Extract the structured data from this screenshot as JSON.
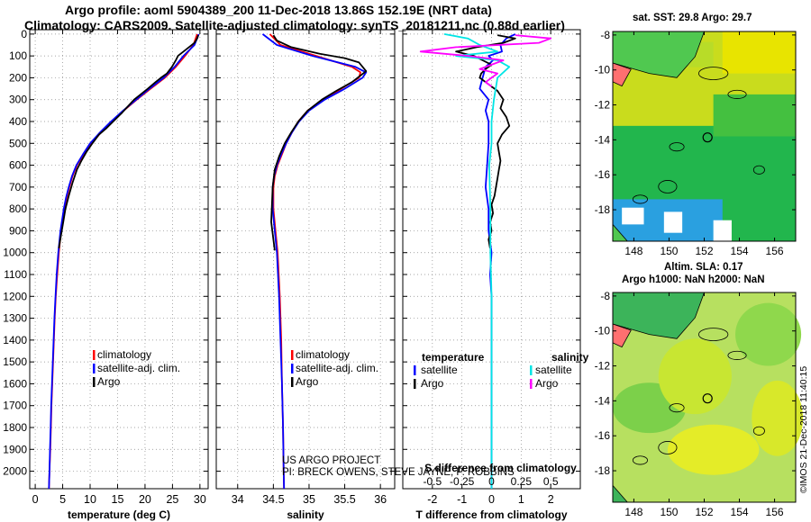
{
  "header": {
    "line1": "Argo profile: aoml 5904389_200 11-Dec-2018 13.86S 152.19E (NRT data)",
    "line2": "Climatology: CARS2009. Satellite-adjusted climatology: synTS_20181211.nc (0.88d earlier)"
  },
  "depth_ticks": [
    "0",
    "100",
    "200",
    "300",
    "400",
    "500",
    "600",
    "700",
    "800",
    "900",
    "1000",
    "1100",
    "1200",
    "1300",
    "1400",
    "1500",
    "1600",
    "1700",
    "1800",
    "1900",
    "2000"
  ],
  "chart_data": [
    {
      "type": "line",
      "name": "temperature",
      "xlabel": "temperature (deg C)",
      "ylabel": "depth",
      "xlim": [
        -1,
        31.5
      ],
      "ylim": [
        2080,
        -20
      ],
      "x_ticks": [
        "0",
        "5",
        "10",
        "15",
        "20",
        "25",
        "30"
      ],
      "x_tick_values": [
        0,
        5,
        10,
        15,
        20,
        25,
        30
      ],
      "legend": [
        "climatology",
        "satellite-adj. clim.",
        "Argo"
      ],
      "series": [
        {
          "name": "climatology",
          "color": "#ff0000",
          "depth": [
            0,
            50,
            100,
            150,
            200,
            250,
            300,
            350,
            400,
            450,
            500,
            550,
            600,
            650,
            700,
            750,
            800,
            900,
            1000,
            1100,
            1200,
            1300,
            1400,
            1500,
            1600,
            1700,
            1800,
            1900,
            2000,
            2080
          ],
          "values": [
            29.5,
            28.8,
            27.3,
            25.6,
            23.6,
            21.0,
            18.5,
            16.1,
            14.0,
            12.0,
            10.2,
            8.8,
            7.6,
            6.8,
            6.2,
            5.7,
            5.3,
            4.7,
            4.3,
            4.0,
            3.75,
            3.55,
            3.4,
            3.25,
            3.1,
            2.95,
            2.85,
            2.75,
            2.6,
            2.5
          ]
        },
        {
          "name": "satellite",
          "color": "#0000ff",
          "depth": [
            0,
            50,
            100,
            150,
            200,
            250,
            300,
            350,
            400,
            450,
            500,
            550,
            600,
            650,
            700,
            750,
            800,
            900,
            1000,
            1100,
            1200,
            1300,
            1400,
            1500,
            1600,
            1700,
            1800,
            1900,
            2000,
            2080
          ],
          "values": [
            29.8,
            29.0,
            27.0,
            25.4,
            23.4,
            20.8,
            18.4,
            16.0,
            13.8,
            11.8,
            10.0,
            8.7,
            7.5,
            6.7,
            6.1,
            5.6,
            5.2,
            4.6,
            4.2,
            3.9,
            3.7,
            3.5,
            3.35,
            3.2,
            3.05,
            2.9,
            2.8,
            2.7,
            2.6,
            2.5
          ]
        },
        {
          "name": "Argo",
          "color": "#000000",
          "depth": [
            5,
            20,
            40,
            60,
            80,
            100,
            120,
            150,
            180,
            200,
            220,
            250,
            280,
            300,
            330,
            360,
            400,
            430,
            460,
            500,
            540,
            580,
            620,
            680,
            740,
            800,
            860,
            920,
            980
          ],
          "values": [
            29.7,
            29.5,
            29.0,
            28.0,
            27.0,
            26.0,
            25.6,
            24.9,
            24.0,
            22.9,
            21.9,
            20.5,
            19.0,
            18.0,
            16.9,
            15.8,
            14.2,
            13.0,
            11.6,
            10.4,
            9.3,
            8.4,
            7.6,
            6.8,
            6.1,
            5.5,
            5.1,
            4.7,
            4.3
          ]
        }
      ]
    },
    {
      "type": "line",
      "name": "salinity",
      "xlabel": "salinity",
      "xlim": [
        33.7,
        36.2
      ],
      "ylim": [
        2080,
        -20
      ],
      "x_ticks": [
        "34",
        "34.5",
        "35",
        "35.5",
        "36"
      ],
      "x_tick_values": [
        34,
        34.5,
        35,
        35.5,
        36
      ],
      "legend": [
        "climatology",
        "satellite-adj. clim.",
        "Argo"
      ],
      "series": [
        {
          "name": "climatology",
          "color": "#ff0000",
          "depth": [
            0,
            50,
            100,
            150,
            175,
            200,
            250,
            300,
            350,
            400,
            450,
            500,
            550,
            600,
            650,
            700,
            800,
            900,
            1000,
            1200,
            1400,
            1600,
            1800,
            2000,
            2080
          ],
          "values": [
            34.45,
            34.6,
            35.1,
            35.6,
            35.72,
            35.7,
            35.45,
            35.2,
            34.98,
            34.85,
            34.76,
            34.68,
            34.62,
            34.56,
            34.52,
            34.5,
            34.5,
            34.53,
            34.56,
            34.59,
            34.61,
            34.62,
            34.635,
            34.645,
            34.65
          ]
        },
        {
          "name": "satellite",
          "color": "#0000ff",
          "depth": [
            0,
            50,
            100,
            150,
            175,
            200,
            250,
            300,
            350,
            400,
            450,
            500,
            550,
            600,
            650,
            700,
            800,
            900,
            1000,
            1200,
            1400,
            1600,
            1800,
            2000,
            2080
          ],
          "values": [
            34.35,
            34.55,
            35.05,
            35.65,
            35.8,
            35.75,
            35.5,
            35.22,
            35.0,
            34.86,
            34.76,
            34.68,
            34.61,
            34.55,
            34.51,
            34.49,
            34.49,
            34.52,
            34.55,
            34.58,
            34.6,
            34.62,
            34.635,
            34.645,
            34.65
          ]
        },
        {
          "name": "Argo",
          "color": "#000000",
          "depth": [
            5,
            30,
            60,
            90,
            110,
            130,
            150,
            170,
            190,
            220,
            260,
            300,
            350,
            400,
            450,
            500,
            560,
            620,
            700,
            780,
            860,
            940,
            990
          ],
          "values": [
            34.5,
            34.55,
            34.75,
            35.15,
            35.5,
            35.7,
            35.75,
            35.8,
            35.72,
            35.6,
            35.38,
            35.18,
            34.98,
            34.85,
            34.75,
            34.66,
            34.58,
            34.52,
            34.49,
            34.48,
            34.47,
            34.5,
            34.52
          ]
        }
      ]
    },
    {
      "type": "line",
      "name": "difference",
      "xlabel": "T difference from climatology",
      "top_xlabel": "S difference from climatology",
      "xlim": [
        -3,
        3
      ],
      "ylim": [
        2080,
        -20
      ],
      "x_ticks": [
        "-2",
        "-1",
        "0",
        "1",
        "2"
      ],
      "x_tick_values": [
        -2,
        -1,
        0,
        1,
        2
      ],
      "top_ticks": [
        "-0.5",
        "-0.25",
        "0",
        "0.25",
        "0.5"
      ],
      "legend_left_title": "temperature",
      "legend_left": [
        "satellite",
        "Argo"
      ],
      "legend_right_title": "salinity",
      "legend_right": [
        "satellite",
        "Argo"
      ],
      "series": [
        {
          "name": "T satellite",
          "color": "#0000ff",
          "depth": [
            0,
            20,
            50,
            80,
            100,
            120,
            150,
            200,
            250,
            300,
            350,
            400,
            500,
            600,
            700,
            800,
            900,
            1000,
            1100,
            1200,
            1400,
            1600,
            1800,
            2000,
            2080
          ],
          "values": [
            0.8,
            0.5,
            0.3,
            0.35,
            -0.1,
            0.05,
            -0.2,
            -0.3,
            -0.4,
            -0.1,
            -0.2,
            -0.1,
            -0.1,
            -0.15,
            -0.2,
            -0.1,
            -0.1,
            0.0,
            -0.05,
            0,
            0,
            0,
            0,
            0,
            0
          ]
        },
        {
          "name": "T Argo",
          "color": "#000000",
          "depth": [
            5,
            20,
            40,
            60,
            80,
            100,
            120,
            140,
            160,
            180,
            200,
            230,
            260,
            300,
            340,
            380,
            420,
            460,
            500,
            540,
            580,
            620,
            660,
            700,
            740,
            780,
            820,
            860,
            900,
            940,
            980
          ],
          "values": [
            0.2,
            0.8,
            0.4,
            -0.5,
            -1.2,
            -0.6,
            -0.3,
            0.0,
            -0.2,
            -0.35,
            -0.4,
            -0.1,
            0.2,
            0.4,
            0.3,
            0.5,
            0.6,
            0.35,
            0.2,
            0.25,
            0.3,
            0.25,
            0.2,
            0.15,
            0.1,
            0.0,
            0.05,
            -0.05,
            0.0,
            -0.1,
            -0.05
          ]
        },
        {
          "name": "S satellite",
          "color": "#00e5e5",
          "depth": [
            0,
            20,
            50,
            80,
            100,
            120,
            150,
            200,
            300,
            400,
            500,
            600,
            800,
            1000,
            1200,
            1400,
            1600,
            1800,
            2000,
            2080
          ],
          "values": [
            -0.4,
            -0.2,
            -0.1,
            0.05,
            -0.3,
            0.05,
            0.15,
            0.05,
            0.02,
            0.0,
            0.0,
            -0.02,
            -0.01,
            -0.01,
            0,
            0,
            0,
            0,
            0,
            0
          ]
        },
        {
          "name": "S Argo",
          "color": "#ff00ff",
          "depth": [
            5,
            20,
            40,
            60,
            80,
            100,
            120,
            140,
            160,
            180,
            200,
            220,
            240
          ],
          "values": [
            0.2,
            0.5,
            0.4,
            -0.3,
            -0.6,
            -0.2,
            0.1,
            0.0,
            -0.1,
            0.05,
            0.0,
            -0.05,
            0.0
          ]
        }
      ]
    }
  ],
  "credits": {
    "line1": "US ARGO PROJECT",
    "line2": "PI: BRECK OWENS, STEVE JAYNE, P. ROBBINS"
  },
  "maps": [
    {
      "title": "sat. SST: 29.8 Argo: 29.7",
      "y_ticks": [
        "-8",
        "-10",
        "-12",
        "-14",
        "-16",
        "-18"
      ],
      "x_ticks": [
        "148",
        "150",
        "152",
        "154",
        "156"
      ]
    },
    {
      "title1": "Altim. SLA: 0.17",
      "title2": "Argo h1000: NaN h2000: NaN",
      "y_ticks": [
        "-8",
        "-10",
        "-12",
        "-14",
        "-16",
        "-18"
      ],
      "x_ticks": [
        "148",
        "150",
        "152",
        "154",
        "156"
      ]
    }
  ],
  "footer": "©IMOS 21-Dec-2018 11:40:15"
}
